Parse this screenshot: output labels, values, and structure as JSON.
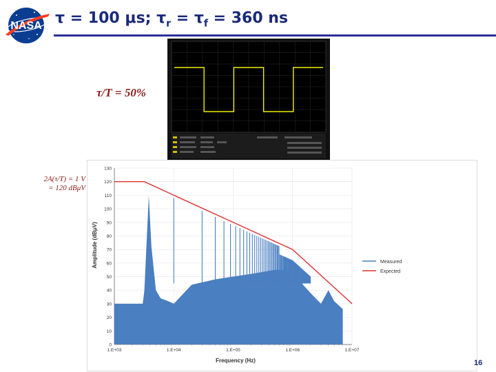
{
  "header": {
    "logo_text": "NASA",
    "title_main": "τ = 100 μs; τ",
    "title_sub_r": "r",
    "title_mid": " = τ",
    "title_sub_f": "f",
    "title_end": "  = 360 ns"
  },
  "labels": {
    "duty_cycle": "τ/T = 50%",
    "amp_note_line1": "2A(τ/T) = 1 V",
    "amp_note_line2": "= 120 dBμV"
  },
  "colors": {
    "title": "#1a2a7a",
    "rule": "#2b2f96",
    "measured": "#4a7fc1",
    "expected": "#e03030",
    "scope_trace": "#f0f000",
    "annotation": "#8b1a1a"
  },
  "chart_data": [
    {
      "type": "line",
      "title": "",
      "xlabel": "",
      "ylabel": "",
      "legend": "none",
      "series": [
        {
          "x": [
            0,
            0.5,
            0.5,
            1,
            1,
            1.5,
            1.5,
            2,
            2,
            2.5
          ],
          "values": [
            1,
            1,
            0,
            0,
            1,
            1,
            0,
            0,
            1,
            1
          ]
        }
      ]
    },
    {
      "type": "line",
      "title": "",
      "xlabel": "Frequency (Hz)",
      "ylabel": "Amplitude (dBμV)",
      "xscale": "log",
      "xlim": [
        1000,
        10000000
      ],
      "ylim": [
        0,
        130
      ],
      "yticks": [
        0,
        10,
        20,
        30,
        40,
        50,
        60,
        70,
        80,
        90,
        100,
        110,
        120,
        130
      ],
      "xticks": [
        1000,
        10000,
        100000,
        1000000,
        10000000
      ],
      "xtick_labels": [
        "1.E+03",
        "1.E+04",
        "1.E+05",
        "1.E+06",
        "1.E+07"
      ],
      "legend_position": "right",
      "series": [
        {
          "name": "Measured",
          "x": [
            1000,
            1200,
            2000,
            3000,
            3200,
            3800,
            4200,
            5000,
            6000,
            8000,
            10000,
            20000,
            50000,
            100000,
            200000,
            500000,
            1000000,
            1500000,
            2000000,
            3000000,
            4000000,
            5000000,
            7000000
          ],
          "values": [
            30,
            30,
            30,
            30,
            40,
            110,
            72,
            40,
            34,
            32,
            30,
            44,
            48,
            50,
            52,
            55,
            55,
            44,
            38,
            30,
            40,
            32,
            26
          ]
        },
        {
          "name": "Expected",
          "x": [
            1000,
            3200,
            10000,
            100000,
            1000000,
            10000000
          ],
          "values": [
            120,
            120,
            110,
            90,
            70,
            30
          ]
        }
      ]
    }
  ]
}
